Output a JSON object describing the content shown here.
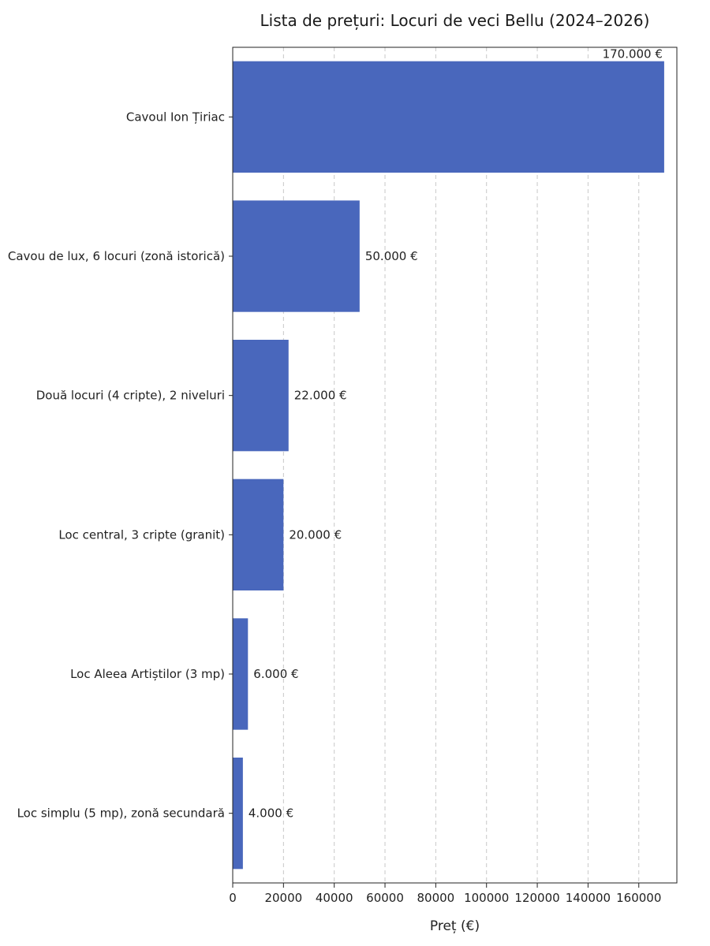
{
  "chart_data": {
    "type": "bar",
    "orientation": "horizontal",
    "title": "Lista de prețuri: Locuri de veci Bellu (2024–2026)",
    "xlabel": "Preț (€)",
    "ylabel": "",
    "xlim": [
      0,
      175000
    ],
    "xticks": [
      0,
      20000,
      40000,
      60000,
      80000,
      100000,
      120000,
      140000,
      160000
    ],
    "xtick_labels": [
      "0",
      "20000",
      "40000",
      "60000",
      "80000",
      "100000",
      "120000",
      "140000",
      "160000"
    ],
    "grid": "vertical dashed",
    "bar_color": "#4967BC",
    "categories": [
      "Cavoul Ion Țiriac",
      "Cavou de lux, 6 locuri (zonă istorică)",
      "Două locuri (4 cripte), 2 niveluri",
      "Loc central, 3 cripte (granit)",
      "Loc Aleea Artiștilor (3 mp)",
      "Loc simplu (5 mp), zonă secundară"
    ],
    "values": [
      170000,
      50000,
      22000,
      20000,
      6000,
      4000
    ],
    "value_labels": [
      "170.000 €",
      "50.000 €",
      "22.000 €",
      "20.000 €",
      "6.000 €",
      "4.000 €"
    ]
  }
}
